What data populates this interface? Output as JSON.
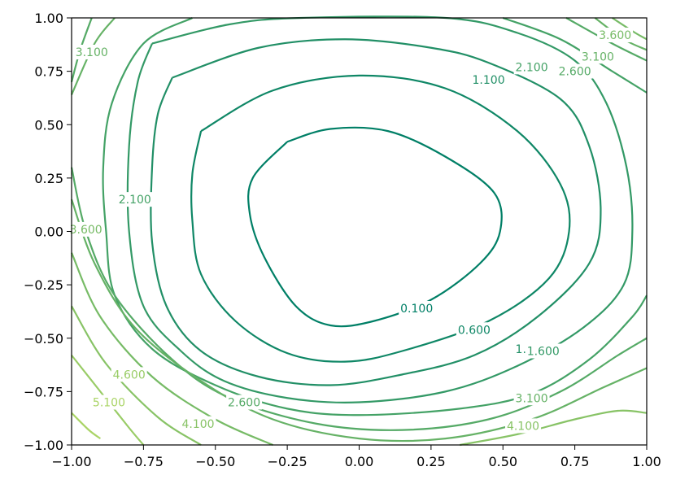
{
  "chart_data": {
    "type": "contour",
    "title": "",
    "xlabel": "",
    "ylabel": "",
    "xlim": [
      -1.0,
      1.0
    ],
    "ylim": [
      -1.0,
      1.0
    ],
    "xticks": [
      "−1.00",
      "−0.75",
      "−0.50",
      "−0.25",
      "0.00",
      "0.25",
      "0.50",
      "0.75",
      "1.00"
    ],
    "yticks": [
      "−1.00",
      "−0.75",
      "−0.50",
      "−0.25",
      "0.00",
      "0.25",
      "0.50",
      "0.75",
      "1.00"
    ],
    "grid": false,
    "colormap": "summer",
    "levels": [
      {
        "level": 0.1,
        "label": "0.100",
        "color": "#007f66",
        "points": [
          [
            -0.25,
            0.42
          ],
          [
            -0.1,
            0.48
          ],
          [
            0.1,
            0.47
          ],
          [
            0.3,
            0.35
          ],
          [
            0.47,
            0.18
          ],
          [
            0.49,
            0.0
          ],
          [
            0.42,
            -0.15
          ],
          [
            0.25,
            -0.32
          ],
          [
            0.05,
            -0.42
          ],
          [
            -0.1,
            -0.44
          ],
          [
            -0.22,
            -0.35
          ],
          [
            -0.33,
            -0.12
          ],
          [
            -0.38,
            0.08
          ],
          [
            -0.37,
            0.25
          ],
          [
            -0.25,
            0.42
          ]
        ],
        "labels_at": [
          [
            0.2,
            -0.36
          ]
        ]
      },
      {
        "level": 0.6,
        "label": "0.600",
        "color": "#0f8766",
        "points": [
          [
            -0.55,
            0.47
          ],
          [
            -0.3,
            0.66
          ],
          [
            0.0,
            0.73
          ],
          [
            0.3,
            0.67
          ],
          [
            0.55,
            0.47
          ],
          [
            0.7,
            0.22
          ],
          [
            0.73,
            0.0
          ],
          [
            0.66,
            -0.22
          ],
          [
            0.45,
            -0.42
          ],
          [
            0.15,
            -0.56
          ],
          [
            -0.05,
            -0.61
          ],
          [
            -0.25,
            -0.57
          ],
          [
            -0.43,
            -0.42
          ],
          [
            -0.55,
            -0.2
          ],
          [
            -0.58,
            0.05
          ],
          [
            -0.58,
            0.27
          ],
          [
            -0.55,
            0.47
          ]
        ],
        "labels_at": [
          [
            0.4,
            -0.46
          ]
        ]
      },
      {
        "level": 1.1,
        "label": "1.100",
        "color": "#218f66",
        "points": [
          [
            -0.65,
            0.72
          ],
          [
            -0.35,
            0.86
          ],
          [
            -0.05,
            0.9
          ],
          [
            0.25,
            0.86
          ],
          [
            0.45,
            0.79
          ],
          [
            0.7,
            0.62
          ],
          [
            0.8,
            0.4
          ],
          [
            0.84,
            0.1
          ],
          [
            0.8,
            -0.15
          ],
          [
            0.62,
            -0.4
          ],
          [
            0.4,
            -0.58
          ],
          [
            0.15,
            -0.67
          ],
          [
            -0.1,
            -0.72
          ],
          [
            -0.35,
            -0.68
          ],
          [
            -0.55,
            -0.56
          ],
          [
            -0.67,
            -0.35
          ],
          [
            -0.72,
            -0.05
          ],
          [
            -0.72,
            0.3
          ],
          [
            -0.7,
            0.55
          ],
          [
            -0.65,
            0.72
          ]
        ],
        "labels_at": [
          [
            0.45,
            0.71
          ],
          [
            0.6,
            -0.55
          ]
        ]
      },
      {
        "level": 1.6,
        "label": "1.600",
        "color": "#339966",
        "points": [
          [
            -0.72,
            0.88
          ],
          [
            -0.45,
            0.97
          ],
          [
            -0.2,
            1.0
          ],
          [
            0.3,
            1.0
          ],
          [
            0.55,
            0.93
          ],
          [
            0.75,
            0.8
          ],
          [
            0.86,
            0.6
          ],
          [
            0.93,
            0.3
          ],
          [
            0.95,
            0.0
          ],
          [
            0.92,
            -0.25
          ],
          [
            0.78,
            -0.45
          ],
          [
            0.55,
            -0.63
          ],
          [
            0.3,
            -0.75
          ],
          [
            0.0,
            -0.8
          ],
          [
            -0.25,
            -0.78
          ],
          [
            -0.47,
            -0.7
          ],
          [
            -0.62,
            -0.56
          ],
          [
            -0.75,
            -0.35
          ],
          [
            -0.8,
            0.0
          ],
          [
            -0.8,
            0.4
          ],
          [
            -0.77,
            0.7
          ],
          [
            -0.72,
            0.88
          ]
        ],
        "labels_at": [
          [
            0.64,
            -0.56
          ]
        ]
      },
      {
        "level": 2.1,
        "label": "2.100",
        "color": "#44a266",
        "points": [
          [
            -0.58,
            1.0
          ],
          [
            -0.75,
            0.88
          ],
          [
            -0.86,
            0.6
          ],
          [
            -0.89,
            0.3
          ],
          [
            -0.88,
            0.0
          ],
          [
            -0.85,
            -0.3
          ],
          [
            -0.72,
            -0.55
          ],
          [
            -0.5,
            -0.72
          ],
          [
            -0.25,
            -0.83
          ],
          [
            0.0,
            -0.86
          ],
          [
            0.35,
            -0.83
          ],
          [
            0.6,
            -0.76
          ],
          [
            0.8,
            -0.6
          ],
          [
            0.95,
            -0.4
          ],
          [
            1.0,
            -0.3
          ]
        ],
        "path2": [
          [
            0.5,
            1.0
          ],
          [
            0.7,
            0.9
          ],
          [
            0.88,
            0.75
          ],
          [
            1.0,
            0.65
          ]
        ],
        "labels_at": [
          [
            -0.78,
            0.15
          ],
          [
            0.6,
            0.77
          ]
        ]
      },
      {
        "level": 2.6,
        "label": "2.600",
        "color": "#55aa66",
        "points": [
          [
            -0.93,
            1.0
          ],
          [
            -0.97,
            0.85
          ],
          [
            -1.0,
            0.7
          ]
        ],
        "path2": [
          [
            -1.0,
            0.3
          ],
          [
            -0.95,
            0.0
          ],
          [
            -0.85,
            -0.3
          ],
          [
            -0.65,
            -0.6
          ],
          [
            -0.45,
            -0.78
          ],
          [
            -0.15,
            -0.9
          ],
          [
            0.15,
            -0.93
          ],
          [
            0.45,
            -0.88
          ],
          [
            0.7,
            -0.75
          ],
          [
            0.9,
            -0.58
          ],
          [
            1.0,
            -0.5
          ]
        ],
        "path3": [
          [
            0.72,
            1.0
          ],
          [
            0.88,
            0.88
          ],
          [
            1.0,
            0.8
          ]
        ],
        "labels_at": [
          [
            -0.4,
            -0.8
          ],
          [
            0.75,
            0.75
          ]
        ]
      },
      {
        "level": 3.1,
        "label": "3.100",
        "color": "#66b266",
        "points": [
          [
            -1.0,
            0.64
          ],
          [
            -0.92,
            0.88
          ],
          [
            -0.85,
            1.0
          ]
        ],
        "path2": [
          [
            -1.0,
            0.15
          ],
          [
            -0.92,
            -0.15
          ],
          [
            -0.78,
            -0.45
          ],
          [
            -0.55,
            -0.7
          ],
          [
            -0.3,
            -0.88
          ],
          [
            0.0,
            -0.97
          ],
          [
            0.3,
            -0.97
          ],
          [
            0.6,
            -0.88
          ],
          [
            0.85,
            -0.73
          ],
          [
            1.0,
            -0.64
          ]
        ],
        "path3": [
          [
            0.82,
            1.0
          ],
          [
            0.92,
            0.9
          ],
          [
            1.0,
            0.85
          ]
        ],
        "labels_at": [
          [
            -0.93,
            0.84
          ],
          [
            0.6,
            -0.78
          ],
          [
            0.83,
            0.82
          ]
        ]
      },
      {
        "level": 3.6,
        "label": "3.600",
        "color": "#77bb66",
        "points": [
          [
            -1.0,
            -0.1
          ],
          [
            -0.9,
            -0.4
          ],
          [
            -0.72,
            -0.68
          ],
          [
            -0.5,
            -0.88
          ],
          [
            -0.3,
            -1.0
          ]
        ],
        "path2": [
          [
            0.88,
            1.0
          ],
          [
            0.96,
            0.93
          ],
          [
            1.0,
            0.9
          ]
        ],
        "labels_at": [
          [
            -0.95,
            0.01
          ],
          [
            0.89,
            0.92
          ]
        ]
      },
      {
        "level": 4.1,
        "label": "4.100",
        "color": "#88c366",
        "points": [
          [
            -1.0,
            -0.35
          ],
          [
            -0.88,
            -0.62
          ],
          [
            -0.7,
            -0.87
          ],
          [
            -0.55,
            -1.0
          ]
        ],
        "path2": [
          [
            0.35,
            -1.0
          ],
          [
            0.55,
            -0.95
          ],
          [
            0.75,
            -0.88
          ],
          [
            0.9,
            -0.84
          ],
          [
            1.0,
            -0.85
          ]
        ],
        "labels_at": [
          [
            -0.56,
            -0.9
          ],
          [
            0.57,
            -0.91
          ]
        ]
      },
      {
        "level": 4.6,
        "label": "4.600",
        "color": "#99cc66",
        "points": [
          [
            -1.0,
            -0.58
          ],
          [
            -0.9,
            -0.75
          ],
          [
            -0.8,
            -0.92
          ],
          [
            -0.75,
            -1.0
          ]
        ],
        "labels_at": [
          [
            -0.8,
            -0.67
          ]
        ]
      },
      {
        "level": 5.1,
        "label": "5.100",
        "color": "#aad466",
        "points": [
          [
            -1.0,
            -0.85
          ],
          [
            -0.94,
            -0.93
          ],
          [
            -0.9,
            -0.97
          ]
        ],
        "labels_at": [
          [
            -0.87,
            -0.8
          ]
        ]
      }
    ]
  }
}
